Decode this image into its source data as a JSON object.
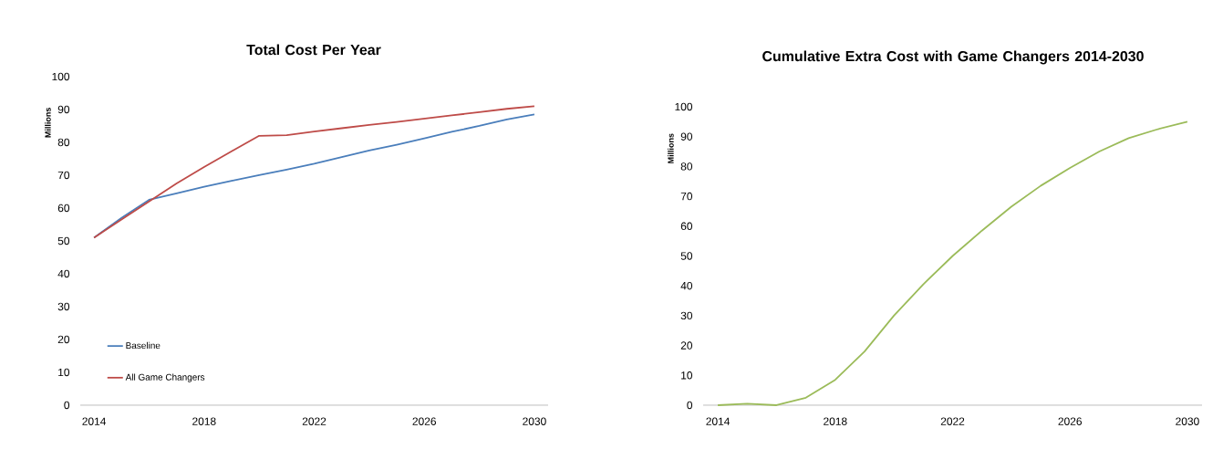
{
  "chart_data": [
    {
      "type": "line",
      "title": "Total Cost Per Year",
      "ylabel": "Millions",
      "x": [
        2014,
        2015,
        2016,
        2017,
        2018,
        2019,
        2020,
        2021,
        2022,
        2023,
        2024,
        2025,
        2026,
        2027,
        2028,
        2029,
        2030
      ],
      "series": [
        {
          "name": "Baseline",
          "color": "#4a7ebb",
          "values": [
            51,
            57,
            62.5,
            64.5,
            66.5,
            68.3,
            70,
            71.7,
            73.5,
            75.5,
            77.5,
            79.3,
            81.2,
            83.2,
            85,
            87,
            88.5
          ]
        },
        {
          "name": "All Game Changers",
          "color": "#be4b48",
          "values": [
            51,
            56.5,
            62,
            67.5,
            72.5,
            77.3,
            82,
            82.2,
            83.3,
            84.3,
            85.3,
            86.2,
            87.2,
            88.2,
            89.2,
            90.2,
            91
          ]
        }
      ],
      "xlim": [
        2013.5,
        2030.5
      ],
      "xticks": [
        2014,
        2018,
        2022,
        2026,
        2030
      ],
      "ylim": [
        0,
        100
      ],
      "yticks": [
        0,
        10,
        20,
        30,
        40,
        50,
        60,
        70,
        80,
        90,
        100
      ],
      "legend": "bottom left",
      "grid": false
    },
    {
      "type": "line",
      "title": "Cumulative Extra Cost with Game Changers 2014-2030",
      "ylabel": "Millions",
      "x": [
        2014,
        2015,
        2016,
        2017,
        2018,
        2019,
        2020,
        2021,
        2022,
        2023,
        2024,
        2025,
        2026,
        2027,
        2028,
        2029,
        2030
      ],
      "series": [
        {
          "color": "#9bbb59",
          "values": [
            0,
            0.5,
            0,
            2.5,
            8.5,
            18,
            30,
            40.5,
            50,
            58.5,
            66.5,
            73.5,
            79.5,
            85,
            89.5,
            92.5,
            95
          ]
        }
      ],
      "xlim": [
        2013.5,
        2030.5
      ],
      "xticks": [
        2014,
        2018,
        2022,
        2026,
        2030
      ],
      "ylim": [
        0,
        100
      ],
      "yticks": [
        0,
        10,
        20,
        30,
        40,
        50,
        60,
        70,
        80,
        90,
        100
      ],
      "grid": false
    }
  ]
}
